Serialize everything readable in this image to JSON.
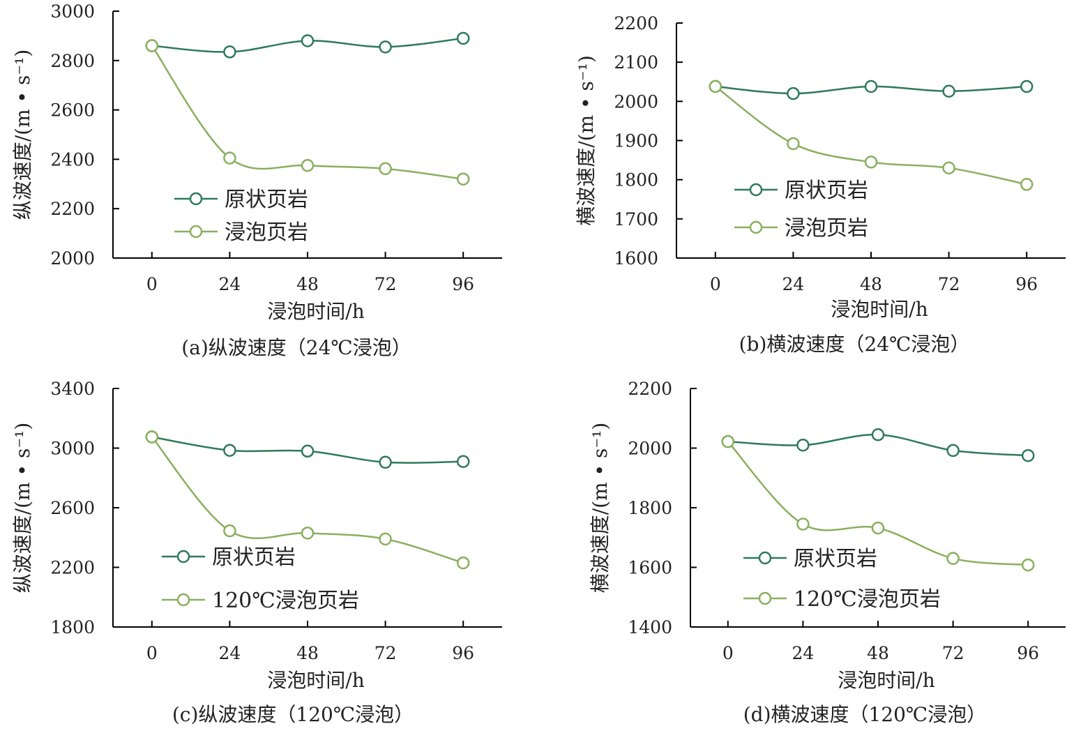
{
  "colors": {
    "original": "#2e7a5a",
    "soaked": "#8aaf5e",
    "axis": "#000000"
  },
  "chart_data": [
    {
      "type": "line",
      "caption": "(a)纵波速度（24℃浸泡）",
      "xlabel": "浸泡时间/h",
      "ylabel": "纵波速度/(m • s⁻¹)",
      "x": [
        0,
        24,
        48,
        72,
        96
      ],
      "xlim": [
        -12,
        108
      ],
      "ylim": [
        2000,
        3000
      ],
      "yticks": [
        2000,
        2200,
        2400,
        2600,
        2800,
        3000
      ],
      "legend_position": "center-left",
      "series": [
        {
          "name": "原状页岩",
          "values": [
            2860,
            2835,
            2880,
            2855,
            2890
          ]
        },
        {
          "name": "浸泡页岩",
          "values": [
            2860,
            2405,
            2375,
            2362,
            2320
          ]
        }
      ]
    },
    {
      "type": "line",
      "caption": "(b)横波速度（24℃浸泡）",
      "xlabel": "浸泡时间/h",
      "ylabel": "横波速度/(m • s⁻¹)",
      "x": [
        0,
        24,
        48,
        72,
        96
      ],
      "xlim": [
        -12,
        108
      ],
      "ylim": [
        1600,
        2200
      ],
      "yticks": [
        1600,
        1700,
        1800,
        1900,
        2000,
        2100,
        2200
      ],
      "legend_position": "center-left",
      "series": [
        {
          "name": "原状页岩",
          "values": [
            2038,
            2020,
            2038,
            2026,
            2038
          ]
        },
        {
          "name": "浸泡页岩",
          "values": [
            2038,
            1892,
            1845,
            1830,
            1788
          ]
        }
      ]
    },
    {
      "type": "line",
      "caption": "(c)纵波速度（120℃浸泡）",
      "xlabel": "浸泡时间/h",
      "ylabel": "纵波速度/(m • s⁻¹)",
      "x": [
        0,
        24,
        48,
        72,
        96
      ],
      "xlim": [
        -12,
        108
      ],
      "ylim": [
        1800,
        3400
      ],
      "yticks": [
        1800,
        2200,
        2600,
        3000,
        3400
      ],
      "legend_position": "bottom-left",
      "series": [
        {
          "name": "原状页岩",
          "values": [
            3075,
            2985,
            2980,
            2905,
            2910
          ]
        },
        {
          "name": "120℃浸泡页岩",
          "values": [
            3075,
            2445,
            2430,
            2390,
            2230
          ]
        }
      ]
    },
    {
      "type": "line",
      "caption": "(d)横波速度（120℃浸泡）",
      "xlabel": "浸泡时间/h",
      "ylabel": "横波速度/(m • s⁻¹)",
      "x": [
        0,
        24,
        48,
        72,
        96
      ],
      "xlim": [
        -12,
        108
      ],
      "ylim": [
        1400,
        2200
      ],
      "yticks": [
        1400,
        1600,
        1800,
        2000,
        2200
      ],
      "legend_position": "bottom-left",
      "series": [
        {
          "name": "原状页岩",
          "values": [
            2022,
            2010,
            2045,
            1992,
            1975
          ]
        },
        {
          "name": "120℃浸泡页岩",
          "values": [
            2022,
            1745,
            1732,
            1630,
            1608
          ]
        }
      ]
    }
  ]
}
